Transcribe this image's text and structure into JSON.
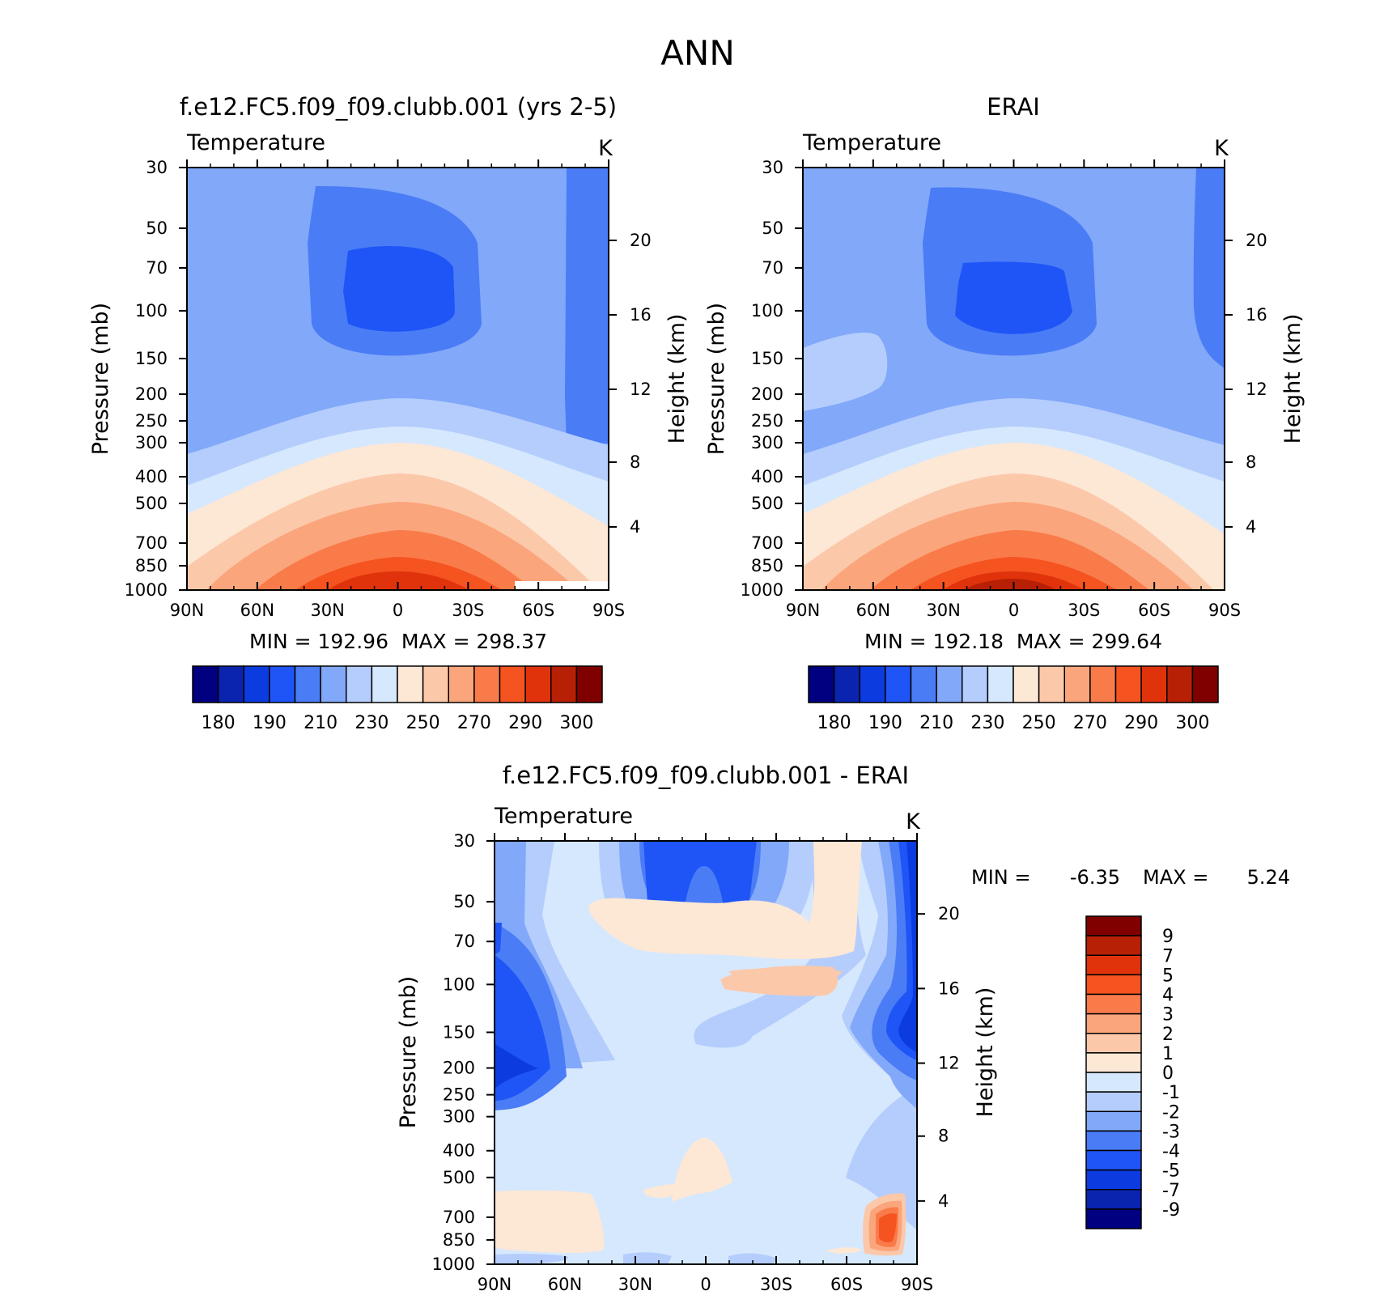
{
  "page_title": "ANN",
  "chart_data": [
    {
      "type": "heatmap",
      "title": "f.e12.FC5.f09_f09.clubb.001 (yrs 2-5)",
      "subtitle_left": "Temperature",
      "subtitle_right": "K",
      "ylabel": "Pressure (mb)",
      "ylabel_right": "Height (km)",
      "x_ticks": [
        "90N",
        "60N",
        "30N",
        "0",
        "30S",
        "60S",
        "90S"
      ],
      "y_ticks": [
        "30",
        "50",
        "70",
        "100",
        "150",
        "200",
        "250",
        "300",
        "400",
        "500",
        "700",
        "850",
        "1000"
      ],
      "y_ticks_right": [
        "20",
        "16",
        "12",
        "8",
        "4"
      ],
      "min_max": "MIN = 192.96  MAX = 298.37",
      "min": 192.96,
      "max": 298.37,
      "colorbar_labels": [
        "180",
        "190",
        "210",
        "230",
        "250",
        "270",
        "290",
        "300"
      ]
    },
    {
      "type": "heatmap",
      "title": "ERAI",
      "subtitle_left": "Temperature",
      "subtitle_right": "K",
      "ylabel": "Pressure (mb)",
      "ylabel_right": "Height (km)",
      "x_ticks": [
        "90N",
        "60N",
        "30N",
        "0",
        "30S",
        "60S",
        "90S"
      ],
      "y_ticks": [
        "30",
        "50",
        "70",
        "100",
        "150",
        "200",
        "250",
        "300",
        "400",
        "500",
        "700",
        "850",
        "1000"
      ],
      "y_ticks_right": [
        "20",
        "16",
        "12",
        "8",
        "4"
      ],
      "min_max": "MIN = 192.18  MAX = 299.64",
      "min": 192.18,
      "max": 299.64,
      "colorbar_labels": [
        "180",
        "190",
        "210",
        "230",
        "250",
        "270",
        "290",
        "300"
      ]
    },
    {
      "type": "heatmap",
      "title": "f.e12.FC5.f09_f09.clubb.001 - ERAI",
      "subtitle_left": "Temperature",
      "subtitle_right": "K",
      "ylabel": "Pressure (mb)",
      "ylabel_right": "Height (km)",
      "x_ticks": [
        "90N",
        "60N",
        "30N",
        "0",
        "30S",
        "60S",
        "90S"
      ],
      "y_ticks": [
        "30",
        "50",
        "70",
        "100",
        "150",
        "200",
        "250",
        "300",
        "400",
        "500",
        "700",
        "850",
        "1000"
      ],
      "y_ticks_right": [
        "20",
        "16",
        "12",
        "8",
        "4"
      ],
      "min_label": "MIN =",
      "min_value": "-6.35",
      "max_label": "MAX =",
      "max_value": "5.24",
      "min": -6.35,
      "max": 5.24,
      "colorbar_labels": [
        "9",
        "7",
        "5",
        "4",
        "3",
        "2",
        "1",
        "0",
        "-1",
        "-2",
        "-3",
        "-4",
        "-5",
        "-7",
        "-9"
      ]
    }
  ],
  "palette": [
    "#000080",
    "#0a24b0",
    "#0c3be0",
    "#1f55f6",
    "#4a7cf6",
    "#82a8fa",
    "#b4cdfc",
    "#d6e8fd",
    "#fde7d5",
    "#fcc8aa",
    "#fba57c",
    "#fa7b4a",
    "#f55320",
    "#e0330c",
    "#b82005",
    "#800000"
  ]
}
